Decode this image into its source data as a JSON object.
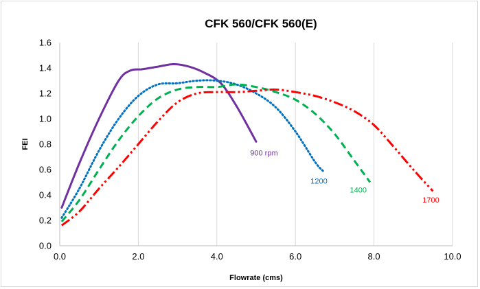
{
  "chart_data": {
    "type": "line",
    "title": "CFK 560/CFK 560(E)",
    "xlabel": "Flowrate (cms)",
    "ylabel": "FEI",
    "xlim": [
      0,
      10
    ],
    "ylim": [
      0,
      1.6
    ],
    "xticks": [
      "0.0",
      "2.0",
      "4.0",
      "6.0",
      "8.0",
      "10.0"
    ],
    "yticks": [
      "0.0",
      "0.2",
      "0.4",
      "0.6",
      "0.8",
      "1.0",
      "1.2",
      "1.4",
      "1.6"
    ],
    "grid": "vertical",
    "series": [
      {
        "name": "900 rpm",
        "color": "#7030a0",
        "style": "solid",
        "x": [
          0.05,
          0.5,
          1.0,
          1.5,
          1.8,
          2.1,
          2.5,
          2.9,
          3.3,
          3.7,
          4.1,
          4.5,
          5.0
        ],
        "y": [
          0.3,
          0.65,
          1.0,
          1.3,
          1.38,
          1.39,
          1.41,
          1.43,
          1.41,
          1.36,
          1.28,
          1.1,
          0.82
        ]
      },
      {
        "name": "1200",
        "color": "#0070c0",
        "style": "dot",
        "x": [
          0.05,
          0.5,
          1.0,
          1.5,
          2.0,
          2.5,
          3.0,
          3.5,
          4.0,
          4.5,
          5.0,
          5.5,
          6.0,
          6.5,
          6.7
        ],
        "y": [
          0.22,
          0.45,
          0.75,
          1.0,
          1.18,
          1.27,
          1.28,
          1.3,
          1.3,
          1.27,
          1.2,
          1.09,
          0.9,
          0.66,
          0.59
        ]
      },
      {
        "name": "1400",
        "color": "#00b050",
        "style": "dash",
        "x": [
          0.05,
          0.5,
          1.0,
          1.5,
          2.0,
          2.5,
          3.0,
          3.5,
          4.0,
          4.5,
          5.0,
          5.5,
          6.0,
          6.5,
          7.0,
          7.5,
          7.9
        ],
        "y": [
          0.19,
          0.36,
          0.6,
          0.83,
          1.02,
          1.16,
          1.23,
          1.25,
          1.25,
          1.27,
          1.25,
          1.21,
          1.15,
          1.04,
          0.88,
          0.67,
          0.5
        ]
      },
      {
        "name": "1700",
        "color": "#ff0000",
        "style": "dashdotdot",
        "x": [
          0.05,
          0.5,
          1.0,
          1.5,
          2.0,
          2.5,
          3.0,
          3.5,
          4.0,
          4.5,
          5.0,
          5.5,
          6.0,
          6.5,
          7.0,
          7.5,
          8.0,
          8.5,
          9.0,
          9.5
        ],
        "y": [
          0.16,
          0.27,
          0.45,
          0.62,
          0.8,
          0.98,
          1.13,
          1.2,
          1.21,
          1.21,
          1.22,
          1.23,
          1.21,
          1.18,
          1.13,
          1.06,
          0.95,
          0.78,
          0.6,
          0.43
        ]
      }
    ],
    "annotations": [
      {
        "text": "900 rpm",
        "color": "#7030a0",
        "at": [
          5.2,
          0.71
        ]
      },
      {
        "text": "1200",
        "color": "#0070c0",
        "at": [
          6.6,
          0.49
        ]
      },
      {
        "text": "1400",
        "color": "#00b050",
        "at": [
          7.6,
          0.42
        ]
      },
      {
        "text": "1700",
        "color": "#ff0000",
        "at": [
          9.45,
          0.34
        ]
      }
    ]
  }
}
